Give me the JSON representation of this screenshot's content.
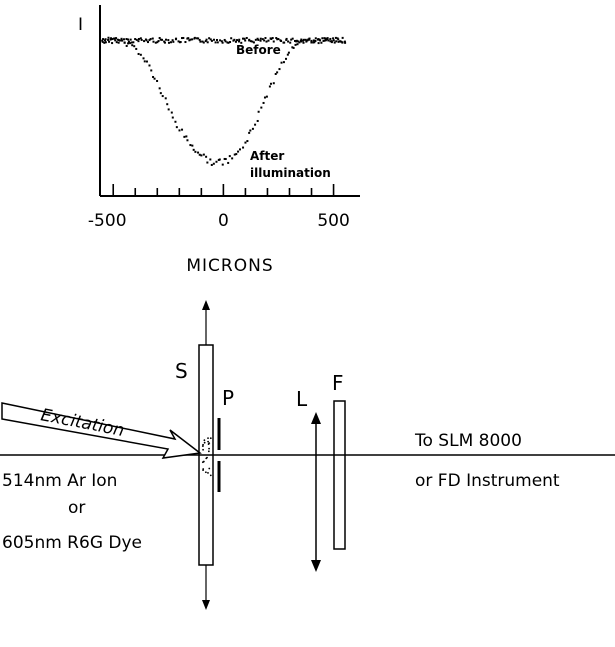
{
  "chart_data": {
    "type": "scatter",
    "title": "",
    "xlabel": "MICRONS",
    "ylabel": "I",
    "xlim": [
      -560,
      620
    ],
    "ylim": [
      0,
      1.08
    ],
    "xticks": [
      -500,
      0,
      500
    ],
    "xtick_labels": [
      "-500",
      "0",
      "500"
    ],
    "grid": false,
    "legend": "none",
    "series": [
      {
        "name": "Before",
        "x": [
          -550,
          -500,
          -450,
          -400,
          -350,
          -300,
          -250,
          -200,
          -150,
          -100,
          -50,
          0,
          50,
          100,
          150,
          200,
          250,
          300,
          350,
          400,
          450,
          500,
          550
        ],
        "y": [
          0.88,
          0.88,
          0.88,
          0.88,
          0.88,
          0.88,
          0.88,
          0.88,
          0.88,
          0.88,
          0.88,
          0.88,
          0.88,
          0.88,
          0.88,
          0.88,
          0.88,
          0.88,
          0.88,
          0.88,
          0.88,
          0.88,
          0.88
        ]
      },
      {
        "name": "After illumination",
        "x": [
          -550,
          -500,
          -450,
          -400,
          -350,
          -300,
          -250,
          -200,
          -150,
          -100,
          -50,
          0,
          50,
          100,
          150,
          200,
          250,
          300,
          350,
          400,
          450,
          500,
          550
        ],
        "y": [
          0.88,
          0.88,
          0.87,
          0.84,
          0.76,
          0.64,
          0.5,
          0.38,
          0.29,
          0.23,
          0.19,
          0.19,
          0.22,
          0.3,
          0.43,
          0.58,
          0.72,
          0.82,
          0.86,
          0.88,
          0.88,
          0.88,
          0.88
        ]
      }
    ],
    "annotations": [
      "Before",
      "After",
      "illumination"
    ]
  },
  "diagram": {
    "labels": {
      "sample": "S",
      "pinhole": "P",
      "lens": "L",
      "filter": "F",
      "excitation": "Excitation",
      "source_line1": "514nm Ar Ion",
      "source_line2": "or",
      "source_line3": "605nm  R6G Dye",
      "dest_line1": "To SLM 8000",
      "dest_line2": "or FD Instrument"
    }
  }
}
